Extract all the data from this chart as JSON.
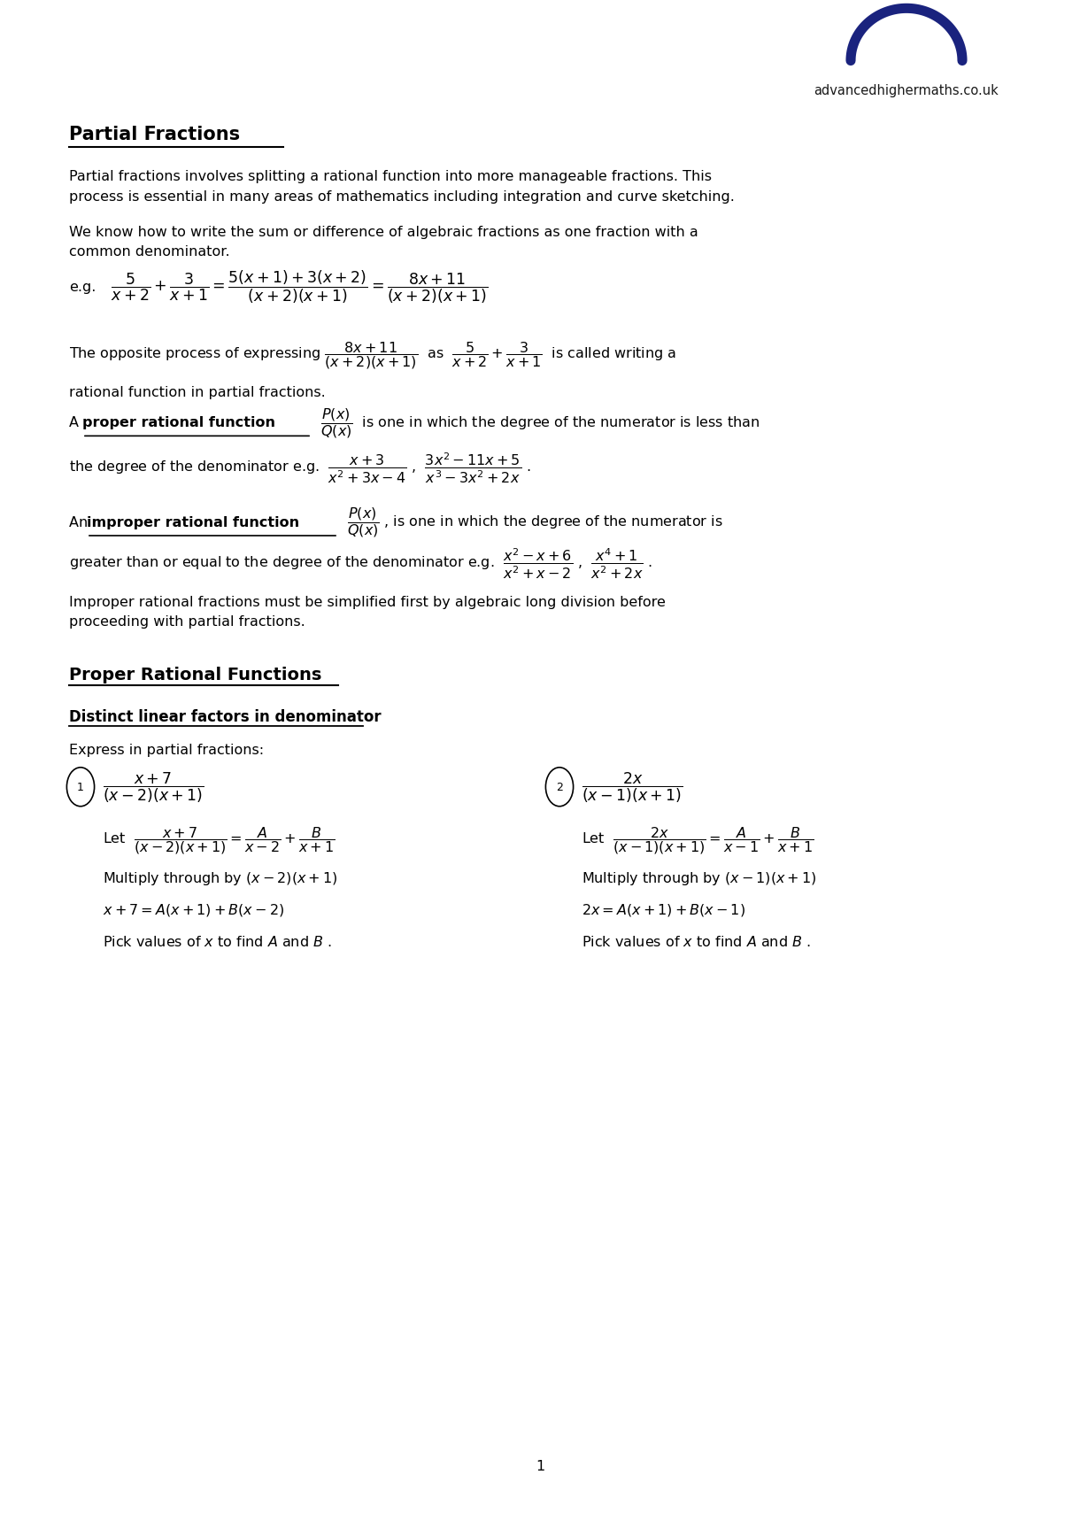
{
  "bg_color": "#ffffff",
  "page_width": 12.0,
  "page_height": 16.97,
  "logo_text": "advancedhighermaths.co.uk",
  "title": "Partial Fractions",
  "body_font_size": 11.5,
  "math_font_size": 11.5
}
